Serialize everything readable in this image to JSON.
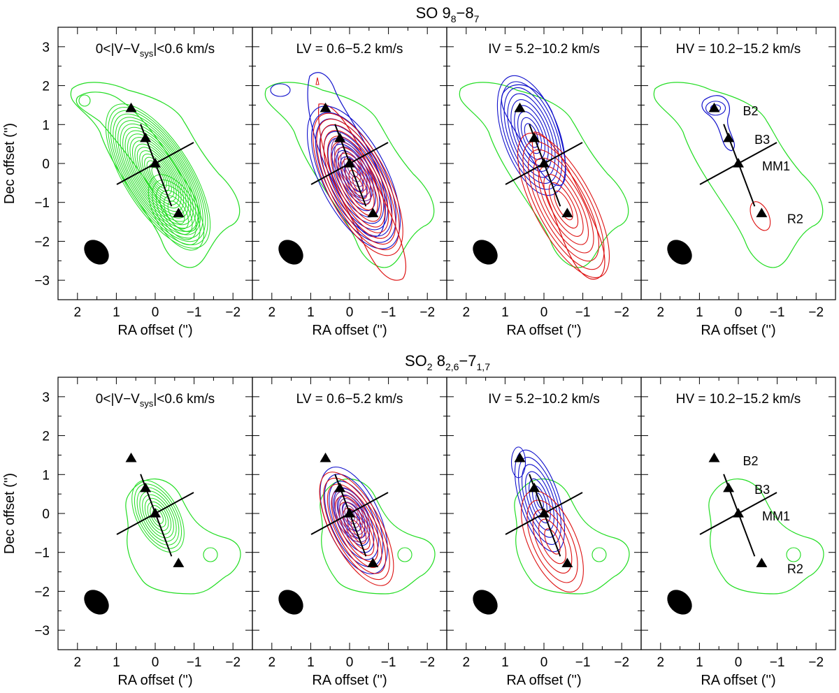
{
  "rows": [
    {
      "title_main": "SO 9",
      "title_sub": "8",
      "title_dash": "−8",
      "title_sub2": "7",
      "panels": [
        {
          "label_pre": "0<|V−V",
          "label_sub": "sys",
          "label_post": "|<0.6 km/s",
          "mode": "green",
          "src_labels": []
        },
        {
          "label_pre": "LV = 0.6−5.2 km/s",
          "label_sub": "",
          "label_post": "",
          "mode": "rb_lv",
          "src_labels": []
        },
        {
          "label_pre": "IV = 5.2−10.2 km/s",
          "label_sub": "",
          "label_post": "",
          "mode": "rb_iv",
          "src_labels": []
        },
        {
          "label_pre": "HV = 10.2−15.2 km/s",
          "label_sub": "",
          "label_post": "",
          "mode": "rb_hv",
          "src_labels": [
            "B2",
            "B3",
            "MM1",
            "R2"
          ]
        }
      ]
    },
    {
      "title_main": "SO",
      "title_sub": "2",
      "title_dash": " 8",
      "title_sub2": "2,6",
      "title_tail": "−7",
      "title_sub3": "1,7",
      "panels": [
        {
          "label_pre": "0<|V−V",
          "label_sub": "sys",
          "label_post": "|<0.6 km/s",
          "mode": "green_small",
          "src_labels": []
        },
        {
          "label_pre": "LV = 0.6−5.2 km/s",
          "label_sub": "",
          "label_post": "",
          "mode": "rb_lv2",
          "src_labels": []
        },
        {
          "label_pre": "IV = 5.2−10.2 km/s",
          "label_sub": "",
          "label_post": "",
          "mode": "rb_iv2",
          "src_labels": []
        },
        {
          "label_pre": "HV = 10.2−15.2 km/s",
          "label_sub": "",
          "label_post": "",
          "mode": "green_only_hv",
          "src_labels": [
            "B2",
            "B3",
            "MM1",
            "R2"
          ]
        }
      ]
    }
  ],
  "axes": {
    "xlabel": "RA offset ('')",
    "ylabel": "Dec offset ('')",
    "xticks": [
      2,
      1,
      0,
      -1,
      -2
    ],
    "xtick_labels": [
      "2",
      "1",
      "0",
      "−1",
      "−2"
    ],
    "yticks": [
      3,
      2,
      1,
      0,
      -1,
      -2,
      -3
    ],
    "ytick_labels": [
      "3",
      "2",
      "1",
      "0",
      "−1",
      "−2",
      "−3"
    ],
    "xlim": [
      2.5,
      -2.5
    ],
    "ylim": [
      -3.5,
      3.5
    ]
  },
  "sources": [
    {
      "name": "B2",
      "ra": 0.62,
      "dec": 1.42
    },
    {
      "name": "B3",
      "ra": 0.25,
      "dec": 0.65
    },
    {
      "name": "MM1",
      "ra": 0.0,
      "dec": 0.0
    },
    {
      "name": "R2",
      "ra": -0.6,
      "dec": -1.28
    }
  ],
  "colors": {
    "green": "#22dd22",
    "red": "#dd1111",
    "blue": "#1111cc",
    "purple": "#7a2a9a",
    "black": "#000000"
  }
}
